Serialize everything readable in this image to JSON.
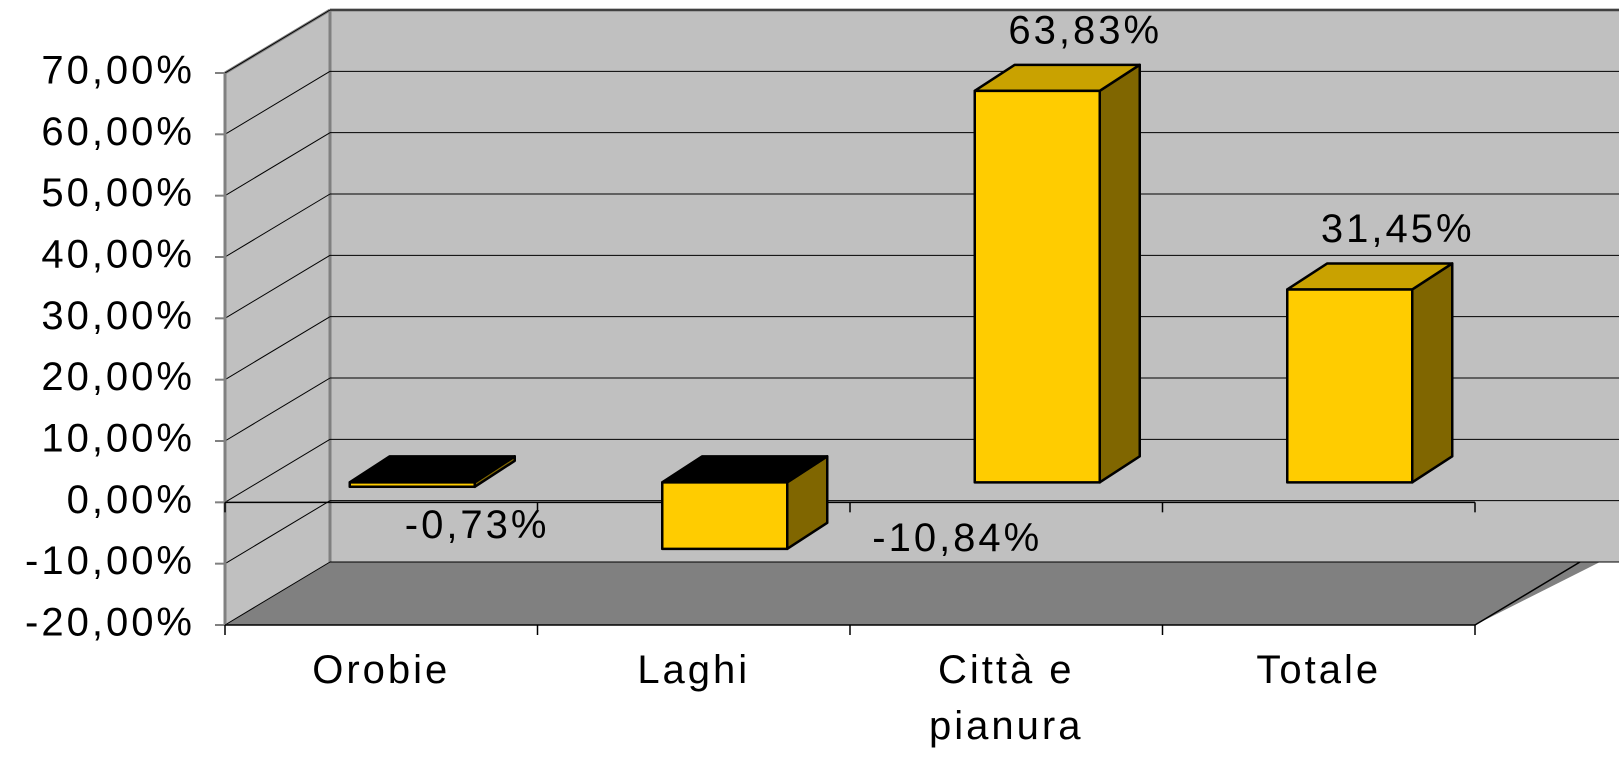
{
  "chart_data": {
    "type": "bar3d",
    "categories": [
      "Orobie",
      "Laghi",
      "Città e pianura",
      "Totale"
    ],
    "values": [
      -0.73,
      -10.84,
      63.83,
      31.45
    ],
    "value_labels": [
      "-0,73%",
      "-10,84%",
      "63,83%",
      "31,45%"
    ],
    "color": "#ffcc00",
    "ylim": [
      -20,
      70
    ],
    "yticks": [
      {
        "value": -20,
        "label": "-20,00%"
      },
      {
        "value": -10,
        "label": "-10,00%"
      },
      {
        "value": 0,
        "label": "0,00%"
      },
      {
        "value": 10,
        "label": "10,00%"
      },
      {
        "value": 20,
        "label": "20,00%"
      },
      {
        "value": 30,
        "label": "30,00%"
      },
      {
        "value": 40,
        "label": "40,00%"
      },
      {
        "value": 50,
        "label": "50,00%"
      },
      {
        "value": 60,
        "label": "60,00%"
      },
      {
        "value": 70,
        "label": "70,00%"
      }
    ],
    "grid": true
  }
}
